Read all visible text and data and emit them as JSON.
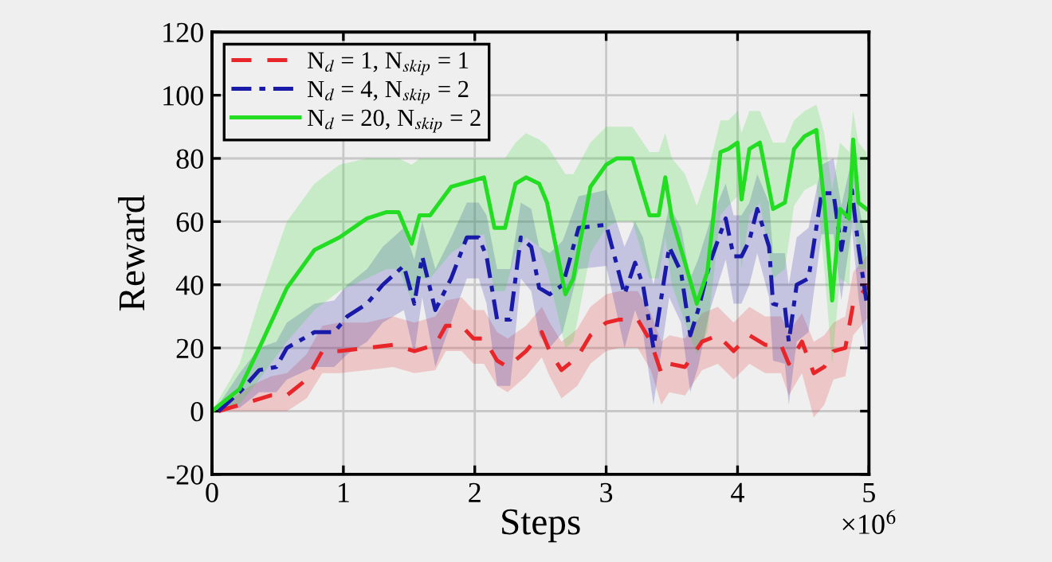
{
  "chart_data": {
    "type": "line",
    "xlabel": "Steps",
    "ylabel": "Reward",
    "annotations": [
      "×10$^{6}$"
    ],
    "xlim": [
      0,
      5
    ],
    "xticks": [
      0,
      1,
      2,
      3,
      4,
      5
    ],
    "ylim": [
      -20,
      120
    ],
    "yticks": [
      -20,
      0,
      20,
      40,
      60,
      80,
      100,
      120
    ],
    "grid": true,
    "legend": "top left",
    "series": [
      {
        "name": "N$_{d}$ = 1, N$_{skip}$ = 1",
        "color": "#e8262a",
        "line_style": "dashed",
        "x": [
          0.05,
          0.29,
          0.45,
          0.57,
          0.72,
          0.84,
          0.97,
          1.18,
          1.38,
          1.54,
          1.7,
          1.78,
          1.9,
          1.99,
          2.07,
          2.17,
          2.25,
          2.39,
          2.51,
          2.57,
          2.66,
          2.78,
          2.88,
          3.0,
          3.1,
          3.24,
          3.34,
          3.42,
          3.48,
          3.6,
          3.73,
          3.85,
          3.97,
          4.09,
          4.21,
          4.33,
          4.39,
          4.49,
          4.58,
          4.66,
          4.73,
          4.82,
          4.88,
          4.94,
          5.0
        ],
        "values": [
          0,
          3,
          5,
          5,
          10,
          19,
          19,
          20,
          21,
          19,
          21,
          27,
          27,
          23,
          23,
          16,
          14,
          19,
          25,
          19,
          13,
          17,
          24,
          28,
          29,
          29,
          22,
          12,
          15,
          14,
          22,
          24,
          19,
          24,
          21,
          21,
          15,
          22,
          12,
          14,
          19,
          20,
          34,
          37,
          40
        ],
        "upper": [
          1,
          8,
          11,
          12,
          18,
          27,
          28,
          28,
          30,
          28,
          30,
          35,
          36,
          32,
          32,
          25,
          23,
          27,
          33,
          28,
          22,
          26,
          33,
          37,
          38,
          38,
          31,
          22,
          24,
          23,
          31,
          33,
          28,
          33,
          30,
          30,
          25,
          31,
          22,
          24,
          28,
          30,
          44,
          47,
          50
        ],
        "lower": [
          0,
          0,
          0,
          0,
          4,
          12,
          12,
          13,
          14,
          12,
          13,
          19,
          19,
          15,
          15,
          8,
          6,
          11,
          17,
          11,
          4,
          8,
          15,
          19,
          20,
          20,
          13,
          2,
          6,
          5,
          13,
          15,
          10,
          15,
          12,
          12,
          5,
          12,
          -2,
          2,
          10,
          11,
          24,
          27,
          30
        ]
      },
      {
        "name": "N$_{d}$ = 4, N$_{skip}$ = 2",
        "color": "#1a1aa8",
        "line_style": "dashdot",
        "x": [
          0.05,
          0.21,
          0.36,
          0.49,
          0.57,
          0.78,
          0.93,
          1.03,
          1.18,
          1.3,
          1.46,
          1.54,
          1.6,
          1.7,
          1.82,
          1.94,
          2.03,
          2.09,
          2.17,
          2.27,
          2.35,
          2.43,
          2.49,
          2.57,
          2.67,
          2.79,
          3.0,
          3.14,
          3.22,
          3.28,
          3.36,
          3.48,
          3.57,
          3.64,
          3.7,
          3.79,
          3.91,
          3.97,
          4.03,
          4.09,
          4.15,
          4.24,
          4.27,
          4.36,
          4.39,
          4.45,
          4.54,
          4.64,
          4.73,
          4.79,
          4.87,
          4.92,
          4.98
        ],
        "values": [
          0,
          6,
          13,
          14,
          20,
          25,
          25,
          30,
          34,
          40,
          46,
          34,
          49,
          32,
          42,
          55,
          55,
          49,
          29,
          29,
          55,
          52,
          39,
          37,
          40,
          58,
          59,
          37,
          47,
          40,
          20,
          52,
          44,
          24,
          32,
          47,
          61,
          49,
          49,
          54,
          64,
          52,
          34,
          33,
          22,
          40,
          42,
          69,
          69,
          51,
          70,
          52,
          35
        ],
        "upper": [
          2,
          12,
          20,
          22,
          28,
          34,
          35,
          40,
          45,
          52,
          58,
          48,
          60,
          45,
          55,
          66,
          66,
          62,
          45,
          45,
          66,
          64,
          52,
          50,
          54,
          68,
          70,
          52,
          60,
          55,
          40,
          65,
          58,
          42,
          48,
          60,
          72,
          62,
          62,
          66,
          75,
          66,
          50,
          50,
          40,
          55,
          58,
          78,
          80,
          65,
          80,
          66,
          52
        ],
        "lower": [
          0,
          1,
          6,
          6,
          10,
          14,
          14,
          18,
          22,
          28,
          32,
          18,
          36,
          14,
          28,
          42,
          42,
          34,
          8,
          8,
          42,
          38,
          24,
          20,
          25,
          45,
          46,
          20,
          32,
          25,
          2,
          36,
          28,
          6,
          14,
          32,
          48,
          34,
          34,
          40,
          50,
          36,
          16,
          15,
          2,
          22,
          25,
          56,
          56,
          35,
          58,
          36,
          18
        ]
      },
      {
        "name": "N$_{d}$ = 20, N$_{skip}$ = 2",
        "color": "#22dd22",
        "line_style": "solid",
        "x": [
          0,
          0.21,
          0.36,
          0.57,
          0.78,
          0.97,
          1.18,
          1.33,
          1.42,
          1.52,
          1.58,
          1.66,
          1.82,
          1.99,
          2.07,
          2.15,
          2.23,
          2.31,
          2.39,
          2.49,
          2.55,
          2.69,
          2.75,
          2.88,
          3.0,
          3.08,
          3.2,
          3.33,
          3.4,
          3.45,
          3.5,
          3.6,
          3.69,
          3.77,
          3.87,
          3.93,
          4.0,
          4.03,
          4.09,
          4.17,
          4.27,
          4.36,
          4.43,
          4.51,
          4.6,
          4.66,
          4.72,
          4.78,
          4.85,
          4.88,
          4.92,
          4.98
        ],
        "values": [
          0,
          7,
          20,
          39,
          51,
          55,
          61,
          63,
          63,
          53,
          62,
          62,
          71,
          73,
          74,
          58,
          58,
          72,
          74,
          72,
          66,
          37,
          42,
          71,
          78,
          80,
          80,
          62,
          62,
          74,
          61,
          47,
          34,
          44,
          82,
          83,
          85,
          67,
          83,
          85,
          64,
          66,
          83,
          87,
          89,
          66,
          35,
          64,
          61,
          86,
          66,
          64
        ],
        "upper": [
          0,
          15,
          35,
          60,
          72,
          78,
          80,
          80,
          80,
          78,
          80,
          80,
          80,
          80,
          80,
          80,
          80,
          85,
          88,
          86,
          84,
          75,
          75,
          85,
          90,
          90,
          90,
          82,
          82,
          88,
          80,
          75,
          65,
          75,
          92,
          92,
          95,
          88,
          95,
          95,
          85,
          85,
          92,
          95,
          97,
          88,
          70,
          85,
          82,
          95,
          85,
          82
        ],
        "lower": [
          0,
          2,
          10,
          22,
          32,
          38,
          42,
          45,
          45,
          35,
          42,
          42,
          50,
          55,
          56,
          38,
          38,
          50,
          55,
          52,
          45,
          20,
          22,
          50,
          58,
          60,
          60,
          42,
          42,
          55,
          40,
          28,
          18,
          25,
          62,
          65,
          68,
          45,
          62,
          66,
          42,
          45,
          65,
          70,
          72,
          45,
          15,
          42,
          40,
          68,
          45,
          45
        ]
      }
    ]
  }
}
